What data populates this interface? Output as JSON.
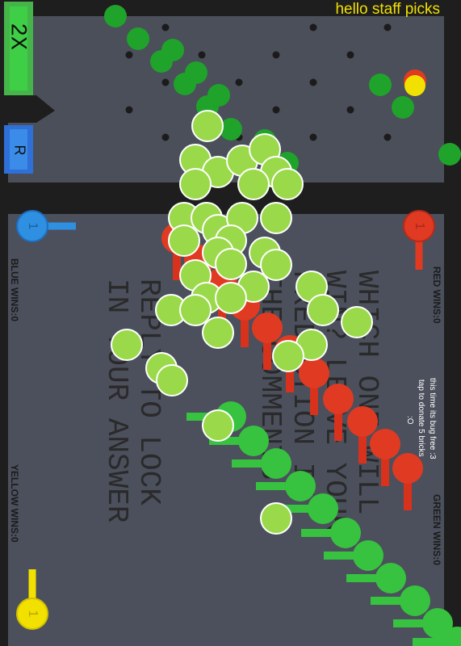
{
  "hud": {
    "multiplier": "2X",
    "button": "R",
    "banner": "hello staff picks"
  },
  "scores": {
    "red": "RED WINS:0",
    "blue": "BLUE WINS:0",
    "yellow": "YELLOW WINS:0",
    "green": "GREEN WINS:0"
  },
  "players": {
    "red": "1",
    "blue": "1",
    "yellow": "1"
  },
  "notes": [
    "this time its bug free :3",
    "tap to donate 5 bricks",
    ":O"
  ],
  "prompt": {
    "lines": [
      "WHICH ONE WILL",
      "WIN? LEAVE YOUR",
      "PREDICTION IN",
      "THE COMMENTS"
    ]
  },
  "reply": {
    "lines": [
      "REPLY TO LOCK",
      "IN YOUR ANSWER"
    ]
  }
}
